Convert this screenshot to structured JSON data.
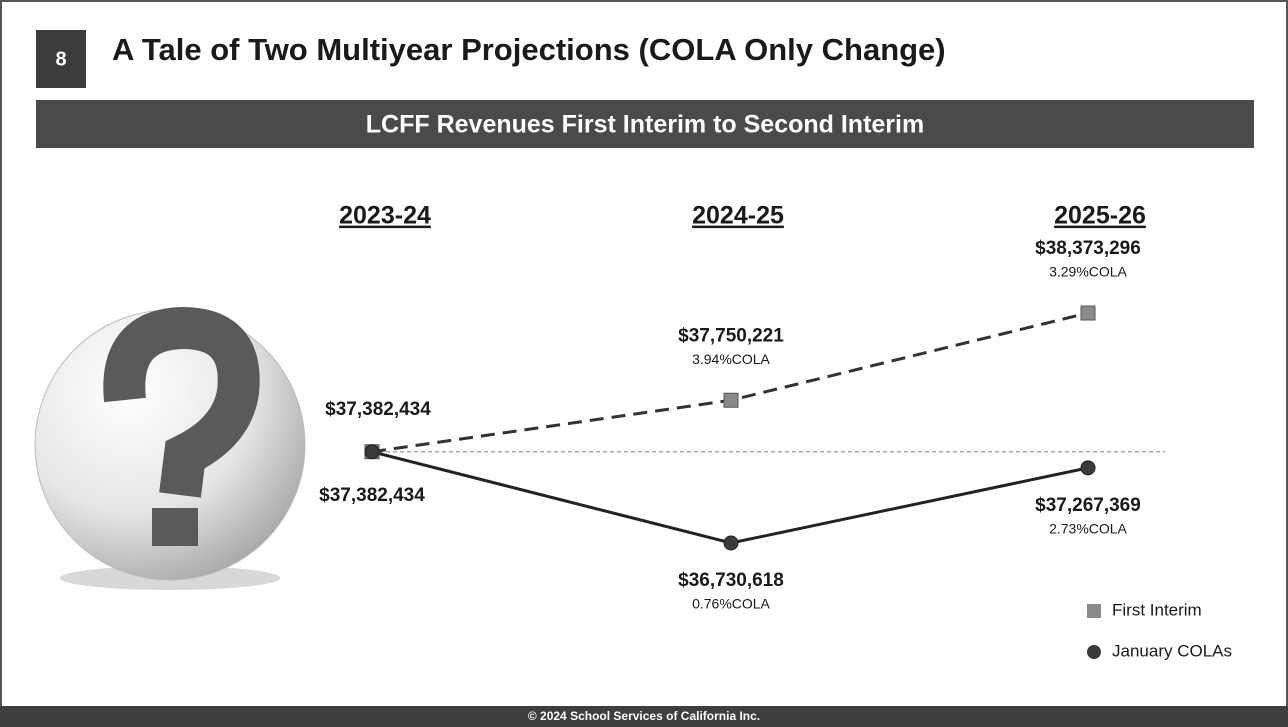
{
  "slide_number": "8",
  "title": "A Tale of Two Multiyear Projections (COLA Only Change)",
  "footer": "© 2024 School Services of California Inc.",
  "chart_data": {
    "type": "line",
    "title": "LCFF Revenues First Interim to Second Interim",
    "categories": [
      "2023-24",
      "2024-25",
      "2025-26"
    ],
    "series": [
      {
        "name": "First Interim",
        "color": "#8a8a8a",
        "line_color": "#333333",
        "line_style": "dashed",
        "marker": "square",
        "values": [
          37382434,
          37750221,
          38373296
        ],
        "value_labels": [
          "$37,382,434",
          "$37,750,221",
          "$38,373,296"
        ],
        "annotations": [
          null,
          "3.94%COLA",
          "3.29%COLA"
        ]
      },
      {
        "name": "January COLAs",
        "color": "#3a3a3a",
        "line_color": "#222222",
        "line_style": "solid",
        "marker": "circle",
        "values": [
          37382434,
          36730618,
          37267369
        ],
        "value_labels": [
          "$37,382,434",
          "$36,730,618",
          "$37,267,369"
        ],
        "annotations": [
          null,
          "0.76%COLA",
          "2.73%COLA"
        ]
      }
    ],
    "legend": "lower right"
  }
}
